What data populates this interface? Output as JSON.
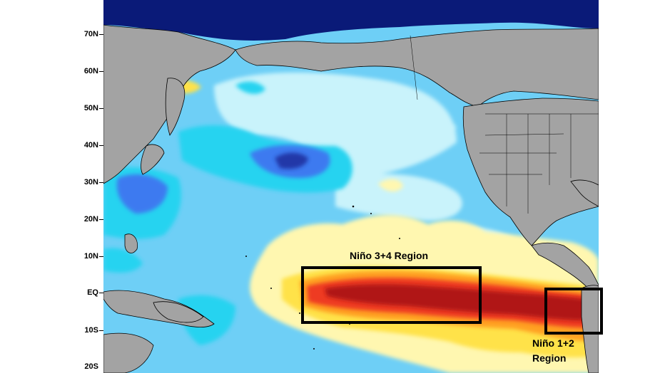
{
  "map": {
    "latitude_labels": [
      "70N",
      "60N",
      "50N",
      "40N",
      "30N",
      "20N",
      "10N",
      "EQ",
      "10S",
      "20S"
    ],
    "colors": {
      "land": "#a3a3a3",
      "ocean_base": "#6ecff6",
      "very_light_cyan": "#c9f3fb",
      "cyan": "#27d3f0",
      "blue": "#3e7af0",
      "dark_blue": "#2037a8",
      "arctic_navy": "#0a1a78",
      "light_yellow": "#fff7b0",
      "yellow": "#ffe24a",
      "orange": "#ffa020",
      "red": "#ee3a24",
      "dark_red": "#b01717",
      "box_outline": "#000000"
    }
  },
  "regions": {
    "nino34": {
      "label": "Niño 3+4 Region"
    },
    "nino12": {
      "label_line1": "Niño 1+2",
      "label_line2": "Region"
    }
  }
}
